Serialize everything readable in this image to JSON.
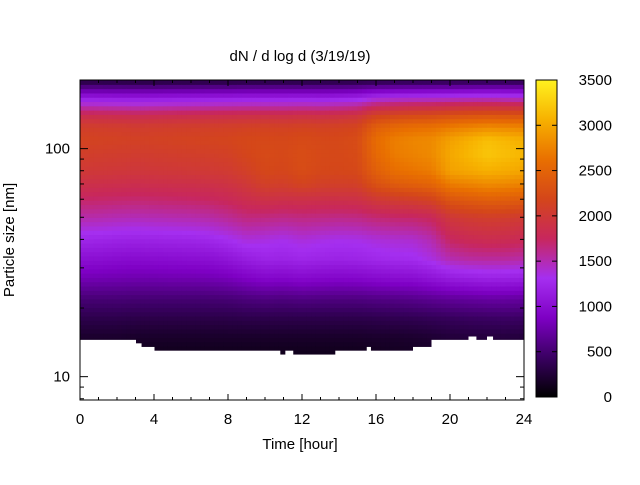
{
  "chart_data": {
    "type": "heatmap",
    "title": "dN / d log d (3/19/19)",
    "xlabel": "Time [hour]",
    "ylabel": "Particle size [nm]",
    "xlim": [
      0,
      24
    ],
    "x_ticks": [
      0,
      4,
      8,
      12,
      16,
      20,
      24
    ],
    "x_tick_labels": [
      "0",
      "4",
      "8",
      "12",
      "16",
      "20",
      "24"
    ],
    "y_scale": "log",
    "ylim": [
      7.9,
      200
    ],
    "y_ticks": [
      10,
      100
    ],
    "y_tick_labels": [
      "10",
      "100"
    ],
    "colorbar": {
      "range": [
        0,
        3500
      ],
      "ticks": [
        0,
        500,
        1000,
        1500,
        2000,
        2500,
        3000,
        3500
      ],
      "tick_labels": [
        "0",
        "500",
        "1000",
        "1500",
        "2000",
        "2500",
        "3000",
        "3500"
      ],
      "colormap": [
        "#000000",
        "#3a0062",
        "#7e00c4",
        "#a52ff0",
        "#c8275d",
        "#d4461a",
        "#e97000",
        "#f7b100",
        "#fff21f"
      ]
    },
    "data_extent": {
      "size_min_nm": 12.5,
      "size_max_nm": 200
    },
    "lower_cutoff_nm": [
      {
        "x": [
          0,
          3.0
        ],
        "size": 14.5
      },
      {
        "x": [
          3.0,
          3.3
        ],
        "size": 14.0
      },
      {
        "x": [
          3.3,
          4.0
        ],
        "size": 13.5
      },
      {
        "x": [
          4.0,
          10.8
        ],
        "size": 13.0
      },
      {
        "x": [
          10.8,
          11.1
        ],
        "size": 12.5
      },
      {
        "x": [
          11.1,
          11.5
        ],
        "size": 13.0
      },
      {
        "x": [
          11.5,
          13.8
        ],
        "size": 12.5
      },
      {
        "x": [
          13.8,
          15.5
        ],
        "size": 13.0
      },
      {
        "x": [
          15.5,
          15.7
        ],
        "size": 13.5
      },
      {
        "x": [
          15.7,
          18.0
        ],
        "size": 13.0
      },
      {
        "x": [
          18.0,
          19.0
        ],
        "size": 13.5
      },
      {
        "x": [
          19.0,
          21.0
        ],
        "size": 14.5
      },
      {
        "x": [
          21.0,
          21.4
        ],
        "size": 15.0
      },
      {
        "x": [
          21.4,
          22.0
        ],
        "size": 14.5
      },
      {
        "x": [
          22.0,
          22.3
        ],
        "size": 15.0
      },
      {
        "x": [
          22.3,
          24
        ],
        "size": 14.5
      }
    ],
    "size_nm": [
      12.5,
      15,
      18,
      22,
      27,
      33,
      40,
      50,
      60,
      70,
      80,
      95,
      110,
      125,
      140,
      160,
      180,
      200
    ],
    "time_hour": [
      0,
      1,
      2,
      3,
      4,
      5,
      6,
      7,
      8,
      9,
      10,
      11,
      12,
      13,
      14,
      15,
      16,
      17,
      18,
      19,
      20,
      21,
      22,
      23,
      24
    ],
    "values": [
      [
        130,
        130,
        130,
        120,
        120,
        120,
        120,
        120,
        120,
        120,
        120,
        120,
        120,
        120,
        120,
        120,
        130,
        140,
        150,
        160,
        180,
        180,
        180,
        180,
        170
      ],
      [
        200,
        200,
        200,
        190,
        190,
        190,
        190,
        190,
        190,
        190,
        190,
        190,
        190,
        190,
        190,
        190,
        200,
        200,
        210,
        230,
        260,
        270,
        280,
        280,
        270
      ],
      [
        330,
        330,
        330,
        320,
        320,
        320,
        320,
        320,
        320,
        330,
        330,
        330,
        330,
        330,
        330,
        330,
        340,
        350,
        360,
        380,
        400,
        420,
        430,
        440,
        430
      ],
      [
        520,
        520,
        520,
        510,
        510,
        510,
        510,
        510,
        520,
        550,
        570,
        560,
        580,
        570,
        570,
        570,
        590,
        600,
        620,
        650,
        680,
        700,
        720,
        720,
        700
      ],
      [
        800,
        790,
        780,
        770,
        770,
        780,
        780,
        790,
        820,
        880,
        930,
        920,
        950,
        930,
        920,
        930,
        960,
        980,
        990,
        1050,
        1120,
        1150,
        1180,
        1170,
        1150
      ],
      [
        1020,
        1010,
        990,
        980,
        990,
        1000,
        1010,
        1020,
        1070,
        1150,
        1210,
        1200,
        1230,
        1210,
        1200,
        1210,
        1250,
        1270,
        1280,
        1360,
        1500,
        1550,
        1560,
        1560,
        1530
      ],
      [
        1230,
        1220,
        1200,
        1190,
        1200,
        1210,
        1220,
        1240,
        1300,
        1380,
        1360,
        1330,
        1380,
        1350,
        1330,
        1340,
        1380,
        1400,
        1410,
        1500,
        1740,
        1800,
        1830,
        1820,
        1790
      ],
      [
        1520,
        1510,
        1490,
        1480,
        1490,
        1500,
        1510,
        1530,
        1580,
        1650,
        1640,
        1620,
        1640,
        1630,
        1620,
        1630,
        1680,
        1700,
        1710,
        1760,
        1980,
        2040,
        2070,
        2060,
        2020
      ],
      [
        1720,
        1710,
        1700,
        1690,
        1700,
        1710,
        1720,
        1740,
        1780,
        1850,
        1900,
        1880,
        1890,
        1880,
        1880,
        1890,
        2000,
        2050,
        2080,
        2140,
        2350,
        2400,
        2450,
        2440,
        2400
      ],
      [
        1880,
        1870,
        1860,
        1850,
        1860,
        1870,
        1880,
        1890,
        1920,
        1990,
        2100,
        2080,
        2150,
        2100,
        2090,
        2100,
        2300,
        2400,
        2450,
        2500,
        2700,
        2750,
        2800,
        2780,
        2740
      ],
      [
        2000,
        1990,
        1980,
        1970,
        1980,
        1990,
        2000,
        2010,
        2030,
        2100,
        2200,
        2180,
        2250,
        2200,
        2190,
        2210,
        2450,
        2600,
        2650,
        2700,
        2950,
        3000,
        3050,
        3020,
        2980
      ],
      [
        2080,
        2070,
        2060,
        2050,
        2060,
        2070,
        2080,
        2090,
        2110,
        2180,
        2230,
        2210,
        2260,
        2220,
        2210,
        2240,
        2550,
        2700,
        2750,
        2800,
        3000,
        3100,
        3200,
        3150,
        3100
      ],
      [
        2150,
        2140,
        2130,
        2120,
        2130,
        2140,
        2150,
        2160,
        2170,
        2200,
        2210,
        2200,
        2230,
        2210,
        2210,
        2250,
        2580,
        2720,
        2770,
        2800,
        2950,
        3050,
        3150,
        3100,
        3050
      ],
      [
        2080,
        2070,
        2060,
        2050,
        2060,
        2070,
        2080,
        2090,
        2100,
        2120,
        2130,
        2120,
        2140,
        2130,
        2140,
        2170,
        2450,
        2550,
        2600,
        2620,
        2700,
        2750,
        2800,
        2780,
        2750
      ],
      [
        1850,
        1840,
        1830,
        1820,
        1830,
        1840,
        1850,
        1860,
        1870,
        1880,
        1890,
        1880,
        1900,
        1890,
        1910,
        1950,
        2150,
        2200,
        2230,
        2250,
        2300,
        2330,
        2350,
        2340,
        2320
      ],
      [
        1350,
        1340,
        1330,
        1320,
        1330,
        1340,
        1350,
        1360,
        1370,
        1380,
        1380,
        1380,
        1390,
        1380,
        1400,
        1430,
        1580,
        1620,
        1640,
        1650,
        1680,
        1700,
        1710,
        1700,
        1690
      ],
      [
        780,
        780,
        770,
        770,
        770,
        780,
        780,
        790,
        790,
        800,
        800,
        800,
        800,
        800,
        810,
        830,
        900,
        920,
        930,
        940,
        950,
        960,
        970,
        960,
        950
      ],
      [
        250,
        250,
        250,
        240,
        240,
        250,
        250,
        250,
        250,
        260,
        260,
        260,
        260,
        260,
        260,
        270,
        290,
        300,
        300,
        300,
        310,
        310,
        310,
        310,
        300
      ]
    ]
  }
}
